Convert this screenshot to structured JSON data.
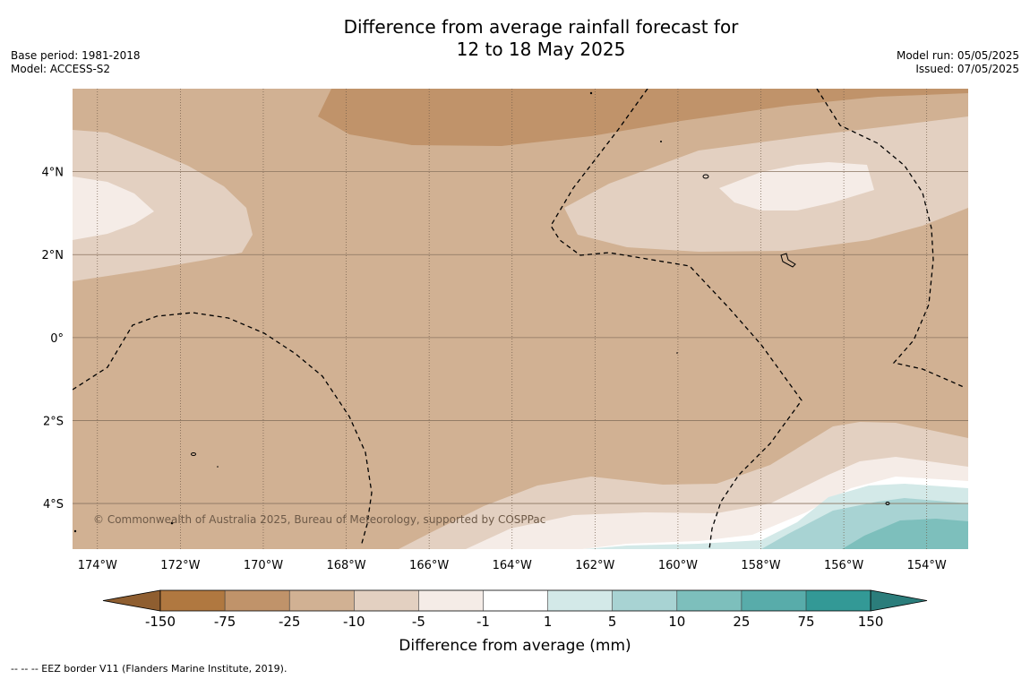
{
  "title": {
    "line1": "Difference from average rainfall forecast for",
    "line2": "12 to 18 May 2025"
  },
  "meta_left": {
    "base_period": "Base period: 1981-2018",
    "model": "Model: ACCESS-S2"
  },
  "meta_right": {
    "model_run": "Model run: 05/05/2025",
    "issued": "Issued: 07/05/2025"
  },
  "copyright": "© Commonwealth of Australia 2025, Bureau of Meteorology, supported by COSPPac",
  "map": {
    "x_ticks": [
      {
        "lon": -174,
        "label": "174°W"
      },
      {
        "lon": -172,
        "label": "172°W"
      },
      {
        "lon": -170,
        "label": "170°W"
      },
      {
        "lon": -168,
        "label": "168°W"
      },
      {
        "lon": -166,
        "label": "166°W"
      },
      {
        "lon": -164,
        "label": "164°W"
      },
      {
        "lon": -162,
        "label": "162°W"
      },
      {
        "lon": -160,
        "label": "160°W"
      },
      {
        "lon": -158,
        "label": "158°W"
      },
      {
        "lon": -156,
        "label": "156°W"
      },
      {
        "lon": -154,
        "label": "154°W"
      }
    ],
    "y_ticks": [
      {
        "lat": 4,
        "label": "4°N"
      },
      {
        "lat": 2,
        "label": "2°N"
      },
      {
        "lat": 0,
        "label": "0°"
      },
      {
        "lat": -2,
        "label": "2°S"
      },
      {
        "lat": -4,
        "label": "4°S"
      }
    ],
    "lon_range": [
      -174.6,
      -153.0
    ],
    "lat_range": [
      -5.1,
      6.0
    ]
  },
  "legend": {
    "title": "Difference from average (mm)",
    "labels": [
      "-150",
      "-75",
      "-25",
      "-10",
      "-5",
      "-1",
      "1",
      "5",
      "10",
      "25",
      "75",
      "150"
    ],
    "colors": [
      "#b07840",
      "#c0936a",
      "#d1b193",
      "#e3d0c1",
      "#f5ece7",
      "#ffffff",
      "#d3e9e8",
      "#a8d3d3",
      "#7dbfbc",
      "#58acaa",
      "#339996"
    ],
    "extend_low_color": "#8f5e30",
    "extend_high_color": "#2b7d7b"
  },
  "footer": {
    "eez_note": "--  --  -- EEZ border V11 (Flanders Marine Institute, 2019)."
  }
}
